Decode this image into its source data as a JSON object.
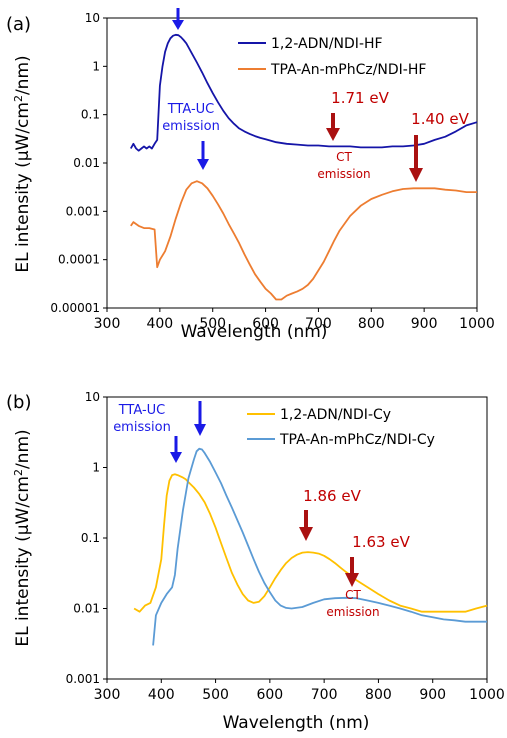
{
  "panels": [
    {
      "label": "(a)",
      "chart_data": {
        "type": "line",
        "title": "",
        "xlabel": "Wavelength (nm)",
        "ylabel_prefix": "EL intensity (μW/cm",
        "ylabel_sup": "2",
        "ylabel_suffix": "/nm)",
        "xlim": [
          300,
          1000
        ],
        "ylim": [
          1e-05,
          10
        ],
        "yscale": "log",
        "xticks": [
          300,
          400,
          500,
          600,
          700,
          800,
          900,
          1000
        ],
        "xtick_labels": [
          "300",
          "400",
          "500",
          "600",
          "700",
          "800",
          "900",
          "1000"
        ],
        "yticks": [
          1e-05,
          0.0001,
          0.001,
          0.01,
          0.1,
          1,
          10
        ],
        "ytick_labels": [
          "0.00001",
          "0.0001",
          "0.001",
          "0.01",
          "0.1",
          "1",
          "10"
        ],
        "legend_position": "top-right",
        "series": [
          {
            "name": "1,2-ADN/NDI-HF",
            "color": "#1515a8",
            "x": [
              345,
              350,
              355,
              360,
              365,
              370,
              375,
              380,
              385,
              390,
              395,
              400,
              405,
              410,
              415,
              420,
              425,
              430,
              435,
              440,
              445,
              450,
              455,
              460,
              470,
              480,
              490,
              500,
              510,
              520,
              530,
              540,
              550,
              560,
              570,
              580,
              590,
              600,
              610,
              620,
              640,
              660,
              680,
              700,
              720,
              740,
              760,
              780,
              800,
              820,
              840,
              860,
              880,
              900,
              920,
              940,
              960,
              980,
              1000
            ],
            "y": [
              0.02,
              0.025,
              0.02,
              0.018,
              0.02,
              0.022,
              0.02,
              0.022,
              0.02,
              0.025,
              0.03,
              0.4,
              1.0,
              2.0,
              3.0,
              3.8,
              4.3,
              4.5,
              4.4,
              4.0,
              3.5,
              3.0,
              2.4,
              1.9,
              1.2,
              0.75,
              0.45,
              0.28,
              0.18,
              0.12,
              0.085,
              0.065,
              0.052,
              0.045,
              0.04,
              0.036,
              0.033,
              0.031,
              0.029,
              0.027,
              0.025,
              0.024,
              0.023,
              0.023,
              0.022,
              0.022,
              0.022,
              0.021,
              0.021,
              0.021,
              0.022,
              0.022,
              0.023,
              0.025,
              0.03,
              0.035,
              0.045,
              0.06,
              0.07
            ]
          },
          {
            "name": "TPA-An-mPhCz/NDI-HF",
            "color": "#ed7d31",
            "x": [
              345,
              350,
              360,
              370,
              380,
              390,
              395,
              400,
              410,
              420,
              430,
              440,
              450,
              460,
              470,
              480,
              490,
              500,
              510,
              520,
              530,
              540,
              550,
              560,
              570,
              580,
              590,
              600,
              610,
              620,
              630,
              640,
              650,
              660,
              670,
              680,
              690,
              700,
              710,
              720,
              730,
              740,
              760,
              780,
              800,
              820,
              840,
              860,
              880,
              900,
              920,
              940,
              960,
              980,
              1000
            ],
            "y": [
              0.0005,
              0.0006,
              0.0005,
              0.00045,
              0.00045,
              0.00042,
              7e-05,
              0.0001,
              0.00015,
              0.0003,
              0.0007,
              0.0015,
              0.0028,
              0.0038,
              0.0042,
              0.0038,
              0.003,
              0.0021,
              0.0014,
              0.0009,
              0.00055,
              0.00035,
              0.00022,
              0.00013,
              8e-05,
              5e-05,
              3.5e-05,
              2.5e-05,
              2e-05,
              1.5e-05,
              1.5e-05,
              1.8e-05,
              2e-05,
              2.2e-05,
              2.5e-05,
              3e-05,
              4e-05,
              6e-05,
              9e-05,
              0.00015,
              0.00025,
              0.0004,
              0.0008,
              0.0013,
              0.0018,
              0.0022,
              0.0026,
              0.0029,
              0.003,
              0.003,
              0.003,
              0.0028,
              0.0027,
              0.0025,
              0.0025
            ]
          }
        ]
      },
      "annotations": {
        "tta_line1": "TTA-UC",
        "tta_line2": "emission",
        "ct_line1": "CT",
        "ct_line2": "emission",
        "energy1": "1.71 eV",
        "energy2": "1.40 eV"
      }
    },
    {
      "label": "(b)",
      "chart_data": {
        "type": "line",
        "title": "",
        "xlabel": "Wavelength (nm)",
        "ylabel_prefix": "EL intensity (μW/cm",
        "ylabel_sup": "2",
        "ylabel_suffix": "/nm)",
        "xlim": [
          300,
          1000
        ],
        "ylim": [
          0.001,
          10
        ],
        "yscale": "log",
        "xticks": [
          300,
          400,
          500,
          600,
          700,
          800,
          900,
          1000
        ],
        "xtick_labels": [
          "300",
          "400",
          "500",
          "600",
          "700",
          "800",
          "900",
          "1000"
        ],
        "yticks": [
          0.001,
          0.01,
          0.1,
          1,
          10
        ],
        "ytick_labels": [
          "0.001",
          "0.01",
          "0.1",
          "1",
          "10"
        ],
        "legend_position": "top-right",
        "series": [
          {
            "name": "1,2-ADN/NDI-Cy",
            "color": "#ffc000",
            "x": [
              350,
              360,
              370,
              380,
              390,
              400,
              405,
              410,
              415,
              420,
              425,
              430,
              435,
              440,
              445,
              450,
              460,
              470,
              480,
              490,
              500,
              510,
              520,
              530,
              540,
              550,
              560,
              570,
              580,
              590,
              600,
              610,
              620,
              630,
              640,
              650,
              660,
              670,
              680,
              690,
              700,
              710,
              720,
              730,
              740,
              750,
              760,
              780,
              800,
              820,
              840,
              860,
              880,
              900,
              920,
              940,
              960,
              980,
              1000
            ],
            "y": [
              0.01,
              0.009,
              0.011,
              0.012,
              0.02,
              0.05,
              0.15,
              0.4,
              0.65,
              0.78,
              0.8,
              0.78,
              0.75,
              0.72,
              0.68,
              0.62,
              0.52,
              0.42,
              0.32,
              0.22,
              0.14,
              0.085,
              0.052,
              0.032,
              0.022,
              0.016,
              0.013,
              0.012,
              0.0125,
              0.015,
              0.02,
              0.027,
              0.035,
              0.044,
              0.052,
              0.058,
              0.062,
              0.063,
              0.062,
              0.06,
              0.056,
              0.05,
              0.044,
              0.038,
              0.033,
              0.029,
              0.025,
              0.02,
              0.016,
              0.013,
              0.011,
              0.01,
              0.009,
              0.009,
              0.009,
              0.009,
              0.009,
              0.01,
              0.011
            ]
          },
          {
            "name": "TPA-An-mPhCz/NDI-Cy",
            "color": "#5b9bd5",
            "x": [
              385,
              390,
              400,
              410,
              420,
              425,
              430,
              440,
              450,
              460,
              465,
              470,
              475,
              480,
              490,
              500,
              510,
              520,
              530,
              540,
              550,
              560,
              570,
              580,
              590,
              600,
              610,
              620,
              630,
              640,
              660,
              680,
              700,
              720,
              740,
              760,
              780,
              800,
              820,
              840,
              860,
              880,
              900,
              920,
              940,
              960,
              980,
              1000
            ],
            "y": [
              0.003,
              0.008,
              0.012,
              0.016,
              0.02,
              0.03,
              0.07,
              0.25,
              0.7,
              1.3,
              1.7,
              1.85,
              1.8,
              1.6,
              1.2,
              0.85,
              0.6,
              0.4,
              0.27,
              0.18,
              0.12,
              0.078,
              0.05,
              0.033,
              0.023,
              0.017,
              0.013,
              0.011,
              0.0102,
              0.01,
              0.0105,
              0.012,
              0.0135,
              0.014,
              0.0142,
              0.014,
              0.013,
              0.012,
              0.011,
              0.01,
              0.009,
              0.008,
              0.0075,
              0.007,
              0.0068,
              0.0065,
              0.0065,
              0.0065
            ]
          }
        ]
      },
      "annotations": {
        "tta_line1": "TTA-UC",
        "tta_line2": "emission",
        "ct_line1": "CT",
        "ct_line2": "emission",
        "energy1": "1.86 eV",
        "energy2": "1.63 eV"
      }
    }
  ],
  "colors": {
    "blue_arrow": "#1a1ae6",
    "red_arrow": "#aa1111",
    "tta_text": "#1a1ae6",
    "ct_text": "#c00000"
  }
}
